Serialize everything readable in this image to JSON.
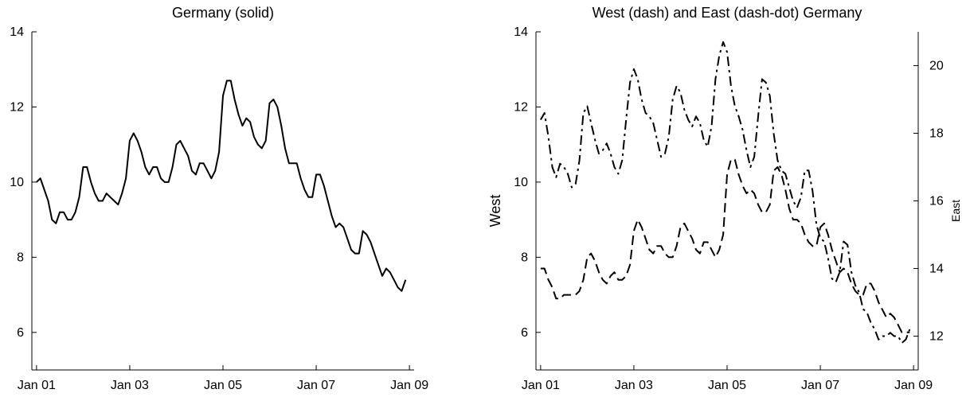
{
  "chart_data": [
    {
      "type": "line",
      "title": "Germany (solid)",
      "xlabel": "",
      "ylabel": "",
      "x_tick_labels": [
        "Jan 01",
        "Jan 03",
        "Jan 05",
        "Jan 07",
        "Jan 09"
      ],
      "x_ticks": [
        2001,
        2003,
        2005,
        2007,
        2009
      ],
      "xlim": [
        2000.9,
        2009.1
      ],
      "ylim": [
        5,
        14
      ],
      "y_ticks": [
        6,
        8,
        10,
        12,
        14
      ],
      "grid": false,
      "series": [
        {
          "style": "solid",
          "color": "#000000",
          "x": [
            2001.0,
            2001.083,
            2001.167,
            2001.25,
            2001.333,
            2001.417,
            2001.5,
            2001.583,
            2001.667,
            2001.75,
            2001.833,
            2001.917,
            2002.0,
            2002.083,
            2002.167,
            2002.25,
            2002.333,
            2002.417,
            2002.5,
            2002.583,
            2002.667,
            2002.75,
            2002.833,
            2002.917,
            2003.0,
            2003.083,
            2003.167,
            2003.25,
            2003.333,
            2003.417,
            2003.5,
            2003.583,
            2003.667,
            2003.75,
            2003.833,
            2003.917,
            2004.0,
            2004.083,
            2004.167,
            2004.25,
            2004.333,
            2004.417,
            2004.5,
            2004.583,
            2004.667,
            2004.75,
            2004.833,
            2004.917,
            2005.0,
            2005.083,
            2005.167,
            2005.25,
            2005.333,
            2005.417,
            2005.5,
            2005.583,
            2005.667,
            2005.75,
            2005.833,
            2005.917,
            2006.0,
            2006.083,
            2006.167,
            2006.25,
            2006.333,
            2006.417,
            2006.5,
            2006.583,
            2006.667,
            2006.75,
            2006.833,
            2006.917,
            2007.0,
            2007.083,
            2007.167,
            2007.25,
            2007.333,
            2007.417,
            2007.5,
            2007.583,
            2007.667,
            2007.75,
            2007.833,
            2007.917,
            2008.0,
            2008.083,
            2008.167,
            2008.25,
            2008.333,
            2008.417,
            2008.5,
            2008.583,
            2008.667,
            2008.75,
            2008.833,
            2008.917
          ],
          "values": [
            10.0,
            10.1,
            9.8,
            9.5,
            9.0,
            8.9,
            9.2,
            9.2,
            9.0,
            9.0,
            9.2,
            9.6,
            10.4,
            10.4,
            10.0,
            9.7,
            9.5,
            9.5,
            9.7,
            9.6,
            9.5,
            9.4,
            9.7,
            10.1,
            11.1,
            11.3,
            11.1,
            10.8,
            10.4,
            10.2,
            10.4,
            10.4,
            10.1,
            10.0,
            10.0,
            10.4,
            11.0,
            11.1,
            10.9,
            10.7,
            10.3,
            10.2,
            10.5,
            10.5,
            10.3,
            10.1,
            10.3,
            10.8,
            12.3,
            12.7,
            12.7,
            12.2,
            11.8,
            11.5,
            11.7,
            11.6,
            11.2,
            11.0,
            10.9,
            11.1,
            12.1,
            12.2,
            12.0,
            11.5,
            10.9,
            10.5,
            10.5,
            10.5,
            10.1,
            9.8,
            9.6,
            9.6,
            10.2,
            10.2,
            9.9,
            9.5,
            9.1,
            8.8,
            8.9,
            8.8,
            8.5,
            8.2,
            8.1,
            8.1,
            8.7,
            8.6,
            8.4,
            8.1,
            7.8,
            7.5,
            7.7,
            7.6,
            7.4,
            7.2,
            7.1,
            7.4
          ]
        }
      ]
    },
    {
      "type": "line",
      "title": "West (dash) and East (dash-dot) Germany",
      "xlabel": "",
      "ylabel": "West",
      "ylabel_right": "East",
      "x_tick_labels": [
        "Jan 01",
        "Jan 03",
        "Jan 05",
        "Jan 07",
        "Jan 09"
      ],
      "x_ticks": [
        2001,
        2003,
        2005,
        2007,
        2009
      ],
      "xlim": [
        2000.9,
        2009.1
      ],
      "ylim": [
        5,
        14
      ],
      "y_ticks": [
        6,
        8,
        10,
        12,
        14
      ],
      "ylim_right": [
        11,
        21
      ],
      "y_ticks_right": [
        12,
        14,
        16,
        18,
        20
      ],
      "grid": false,
      "series": [
        {
          "style": "dash",
          "axis": "left",
          "color": "#000000",
          "x": [
            2001.0,
            2001.083,
            2001.167,
            2001.25,
            2001.333,
            2001.417,
            2001.5,
            2001.583,
            2001.667,
            2001.75,
            2001.833,
            2001.917,
            2002.0,
            2002.083,
            2002.167,
            2002.25,
            2002.333,
            2002.417,
            2002.5,
            2002.583,
            2002.667,
            2002.75,
            2002.833,
            2002.917,
            2003.0,
            2003.083,
            2003.167,
            2003.25,
            2003.333,
            2003.417,
            2003.5,
            2003.583,
            2003.667,
            2003.75,
            2003.833,
            2003.917,
            2004.0,
            2004.083,
            2004.167,
            2004.25,
            2004.333,
            2004.417,
            2004.5,
            2004.583,
            2004.667,
            2004.75,
            2004.833,
            2004.917,
            2005.0,
            2005.083,
            2005.167,
            2005.25,
            2005.333,
            2005.417,
            2005.5,
            2005.583,
            2005.667,
            2005.75,
            2005.833,
            2005.917,
            2006.0,
            2006.083,
            2006.167,
            2006.25,
            2006.333,
            2006.417,
            2006.5,
            2006.583,
            2006.667,
            2006.75,
            2006.833,
            2006.917,
            2007.0,
            2007.083,
            2007.167,
            2007.25,
            2007.333,
            2007.417,
            2007.5,
            2007.583,
            2007.667,
            2007.75,
            2007.833,
            2007.917,
            2008.0,
            2008.083,
            2008.167,
            2008.25,
            2008.333,
            2008.417,
            2008.5,
            2008.583,
            2008.667,
            2008.75,
            2008.833,
            2008.917
          ],
          "values": [
            7.7,
            7.7,
            7.4,
            7.2,
            6.9,
            6.9,
            7.0,
            7.0,
            7.0,
            7.0,
            7.1,
            7.4,
            8.0,
            8.1,
            7.9,
            7.6,
            7.4,
            7.3,
            7.5,
            7.6,
            7.4,
            7.4,
            7.5,
            7.8,
            8.7,
            9.0,
            8.8,
            8.5,
            8.2,
            8.1,
            8.3,
            8.3,
            8.1,
            8.0,
            8.0,
            8.3,
            8.8,
            8.9,
            8.7,
            8.5,
            8.2,
            8.1,
            8.4,
            8.4,
            8.2,
            8.0,
            8.2,
            8.6,
            10.2,
            10.6,
            10.6,
            10.2,
            9.9,
            9.7,
            9.8,
            9.7,
            9.4,
            9.2,
            9.2,
            9.4,
            10.3,
            10.4,
            10.2,
            9.8,
            9.3,
            9.0,
            9.0,
            8.9,
            8.6,
            8.4,
            8.3,
            8.3,
            8.8,
            8.9,
            8.6,
            8.2,
            7.9,
            7.6,
            7.7,
            7.6,
            7.3,
            7.1,
            7.0,
            7.0,
            7.3,
            7.3,
            7.1,
            6.8,
            6.6,
            6.4,
            6.5,
            6.4,
            6.2,
            6.0,
            6.0,
            6.0
          ]
        },
        {
          "style": "dash-dot",
          "axis": "right",
          "color": "#000000",
          "x": [
            2001.0,
            2001.083,
            2001.167,
            2001.25,
            2001.333,
            2001.417,
            2001.5,
            2001.583,
            2001.667,
            2001.75,
            2001.833,
            2001.917,
            2002.0,
            2002.083,
            2002.167,
            2002.25,
            2002.333,
            2002.417,
            2002.5,
            2002.583,
            2002.667,
            2002.75,
            2002.833,
            2002.917,
            2003.0,
            2003.083,
            2003.167,
            2003.25,
            2003.333,
            2003.417,
            2003.5,
            2003.583,
            2003.667,
            2003.75,
            2003.833,
            2003.917,
            2004.0,
            2004.083,
            2004.167,
            2004.25,
            2004.333,
            2004.417,
            2004.5,
            2004.583,
            2004.667,
            2004.75,
            2004.833,
            2004.917,
            2005.0,
            2005.083,
            2005.167,
            2005.25,
            2005.333,
            2005.417,
            2005.5,
            2005.583,
            2005.667,
            2005.75,
            2005.833,
            2005.917,
            2006.0,
            2006.083,
            2006.167,
            2006.25,
            2006.333,
            2006.417,
            2006.5,
            2006.583,
            2006.667,
            2006.75,
            2006.833,
            2006.917,
            2007.0,
            2007.083,
            2007.167,
            2007.25,
            2007.333,
            2007.417,
            2007.5,
            2007.583,
            2007.667,
            2007.75,
            2007.833,
            2007.917,
            2008.0,
            2008.083,
            2008.167,
            2008.25,
            2008.333,
            2008.417,
            2008.5,
            2008.583,
            2008.667,
            2008.75,
            2008.833,
            2008.917
          ],
          "values": [
            18.4,
            18.6,
            17.9,
            17.0,
            16.7,
            17.1,
            17.0,
            16.8,
            16.4,
            16.5,
            17.2,
            18.6,
            18.8,
            18.3,
            17.8,
            17.4,
            17.5,
            17.7,
            17.4,
            17.0,
            16.8,
            17.2,
            18.4,
            19.5,
            19.9,
            19.6,
            19.0,
            18.6,
            18.5,
            18.3,
            17.8,
            17.3,
            17.4,
            17.9,
            19.0,
            19.4,
            19.2,
            18.7,
            18.4,
            18.2,
            18.5,
            18.3,
            17.8,
            17.6,
            18.2,
            19.6,
            20.3,
            20.7,
            20.4,
            19.4,
            18.8,
            18.5,
            18.1,
            17.5,
            17.0,
            17.3,
            18.5,
            19.6,
            19.5,
            19.1,
            18.0,
            17.2,
            16.9,
            16.8,
            16.4,
            16.0,
            15.8,
            16.1,
            16.9,
            16.9,
            16.3,
            15.3,
            14.9,
            14.8,
            14.3,
            13.7,
            13.6,
            13.9,
            14.8,
            14.7,
            13.9,
            13.5,
            13.3,
            12.8,
            12.7,
            12.4,
            12.2,
            11.9,
            12.0,
            12.0,
            12.1,
            12.0,
            12.0,
            11.8,
            11.9,
            12.2
          ]
        }
      ]
    }
  ]
}
